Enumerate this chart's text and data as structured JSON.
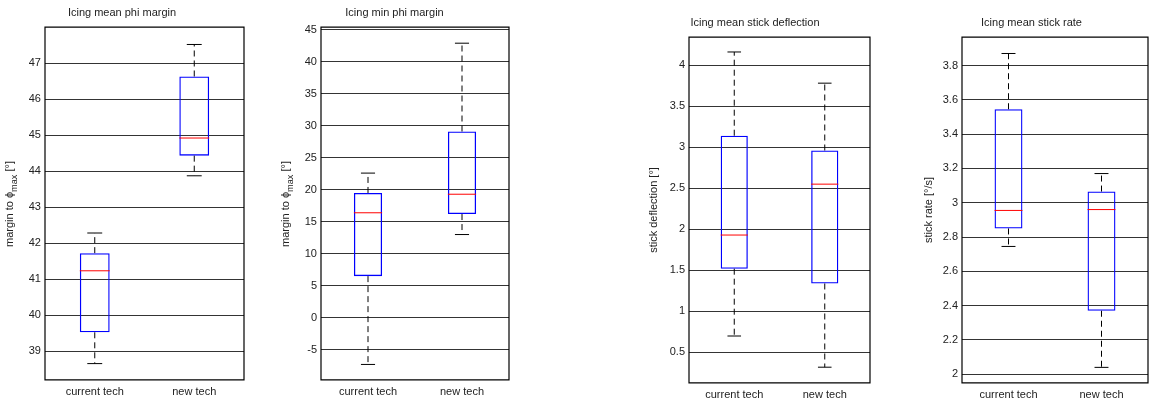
{
  "chart_data": [
    {
      "type": "box",
      "title": "Icing mean phi margin",
      "ylabel": "margin to ϕ$_{max}$ [°]",
      "categories": [
        "current tech",
        "new tech"
      ],
      "color": "#0000ff",
      "grid": "y",
      "ylim": [
        38.2,
        48
      ],
      "yticks": [
        39,
        40,
        41,
        42,
        43,
        44,
        45,
        46,
        47
      ],
      "boxes": [
        {
          "low": 38.65,
          "q1": 39.52,
          "median": 41.23,
          "q3": 41.72,
          "high": 42.28
        },
        {
          "low": 43.87,
          "q1": 44.43,
          "median": 44.92,
          "q3": 46.63,
          "high": 47.52
        }
      ]
    },
    {
      "type": "box",
      "title": "Icing min phi margin",
      "ylabel": "margin to ϕ$_{max}$ [°]",
      "categories": [
        "current tech",
        "new tech"
      ],
      "color": "#0000ff",
      "grid": "y",
      "ylim": [
        -9.7,
        45.4
      ],
      "yticks": [
        -5,
        0,
        5,
        10,
        15,
        20,
        25,
        30,
        35,
        40,
        45
      ],
      "boxes": [
        {
          "low": -7.3,
          "q1": 6.5,
          "median": 16.4,
          "q3": 19.5,
          "high": 22.6
        },
        {
          "low": 13,
          "q1": 16.2,
          "median": 19.3,
          "q3": 29.1,
          "high": 42.9
        }
      ]
    },
    {
      "type": "box",
      "title": "Icing mean stick deflection",
      "ylabel": "stick deflection [°]",
      "categories": [
        "current tech",
        "new tech"
      ],
      "color": "#0000ff",
      "grid": "y",
      "ylim": [
        0.13,
        4.34
      ],
      "yticks": [
        0.5,
        1,
        1.5,
        2,
        2.5,
        3,
        3.5,
        4
      ],
      "boxes": [
        {
          "low": 0.7,
          "q1": 1.52,
          "median": 1.93,
          "q3": 3.14,
          "high": 4.16
        },
        {
          "low": 0.32,
          "q1": 1.34,
          "median": 2.55,
          "q3": 2.96,
          "high": 3.78
        }
      ]
    },
    {
      "type": "box",
      "title": "Icing mean stick rate",
      "ylabel": "stick rate [°/s]",
      "categories": [
        "current tech",
        "new tech"
      ],
      "color": "#0000ff",
      "grid": "y",
      "ylim": [
        1.95,
        3.965
      ],
      "yticks": [
        2,
        2.2,
        2.4,
        2.6,
        2.8,
        3,
        3.2,
        3.4,
        3.6,
        3.8
      ],
      "boxes": [
        {
          "low": 2.745,
          "q1": 2.85,
          "median": 2.955,
          "q3": 3.545,
          "high": 3.87
        },
        {
          "low": 2.04,
          "q1": 2.37,
          "median": 2.96,
          "q3": 3.065,
          "high": 3.17
        }
      ]
    }
  ]
}
